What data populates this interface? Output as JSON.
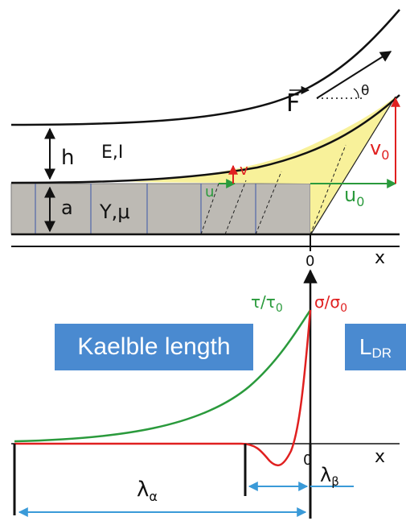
{
  "labels": {
    "force": "F",
    "theta": "θ",
    "height": "h",
    "beam_props": "E,I",
    "layer_thickness": "a",
    "layer_props": "Y,μ",
    "v": "v",
    "u": "u",
    "v0": "v",
    "v0_sub": "0",
    "u0": "u",
    "u0_sub": "0",
    "origin_top": "0",
    "x_top": "x",
    "origin_bottom": "0",
    "x_bottom": "x",
    "tau": "τ/τ",
    "tau_sub": "0",
    "sigma": "σ/σ",
    "sigma_sub": "0",
    "lambda_alpha": "λ",
    "lambda_alpha_sub": "α",
    "lambda_beta": "λ",
    "lambda_beta_sub": "β"
  },
  "boxes": {
    "kaelble": "Kaelble length",
    "ldr_main": "L",
    "ldr_sub": "DR"
  },
  "colors": {
    "green": "#2a9a3c",
    "red": "#e02020",
    "yellow": "#f8f19a",
    "gray": "#bdbab4",
    "blue_arrow": "#3a9ad8",
    "box": "#4a8ad0"
  }
}
